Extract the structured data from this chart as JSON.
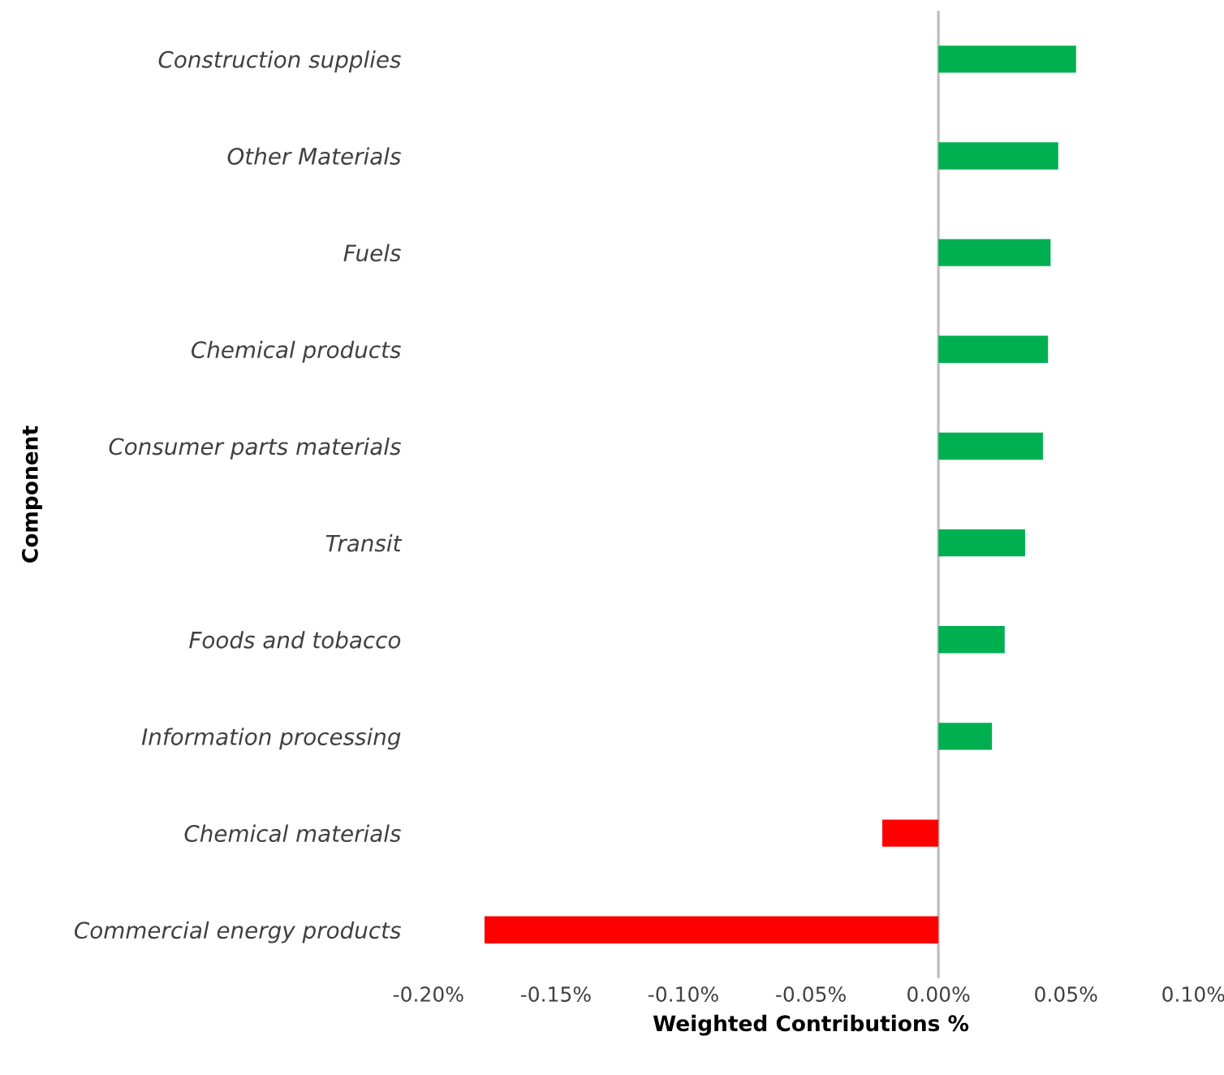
{
  "chart_data": {
    "type": "bar",
    "orientation": "horizontal",
    "xlabel": "Weighted Contributions %",
    "ylabel": "Component",
    "categories": [
      "Construction supplies",
      "Other Materials",
      "Fuels",
      "Chemical products",
      "Consumer parts materials",
      "Transit",
      "Foods and tobacco",
      "Information processing",
      "Chemical materials",
      "Commercial energy products"
    ],
    "values": [
      0.054,
      0.047,
      0.044,
      0.043,
      0.041,
      0.034,
      0.026,
      0.021,
      -0.022,
      -0.178
    ],
    "colors": [
      "#00b050",
      "#00b050",
      "#00b050",
      "#00b050",
      "#00b050",
      "#00b050",
      "#00b050",
      "#00b050",
      "#ff0000",
      "#ff0000"
    ],
    "xlim": [
      -0.2,
      0.1
    ],
    "xticks": [
      {
        "value": -0.2,
        "label": "-0.20%"
      },
      {
        "value": -0.15,
        "label": "-0.15%"
      },
      {
        "value": -0.1,
        "label": "-0.10%"
      },
      {
        "value": -0.05,
        "label": "-0.05%"
      },
      {
        "value": 0,
        "label": "0.00%"
      },
      {
        "value": 0.05,
        "label": "0.05%"
      },
      {
        "value": 0.1,
        "label": "0.10%"
      }
    ],
    "ref_lines": [
      {
        "axis": "x",
        "value": 0,
        "color": "#bfbfbf"
      }
    ],
    "grid": false,
    "legend": false
  }
}
